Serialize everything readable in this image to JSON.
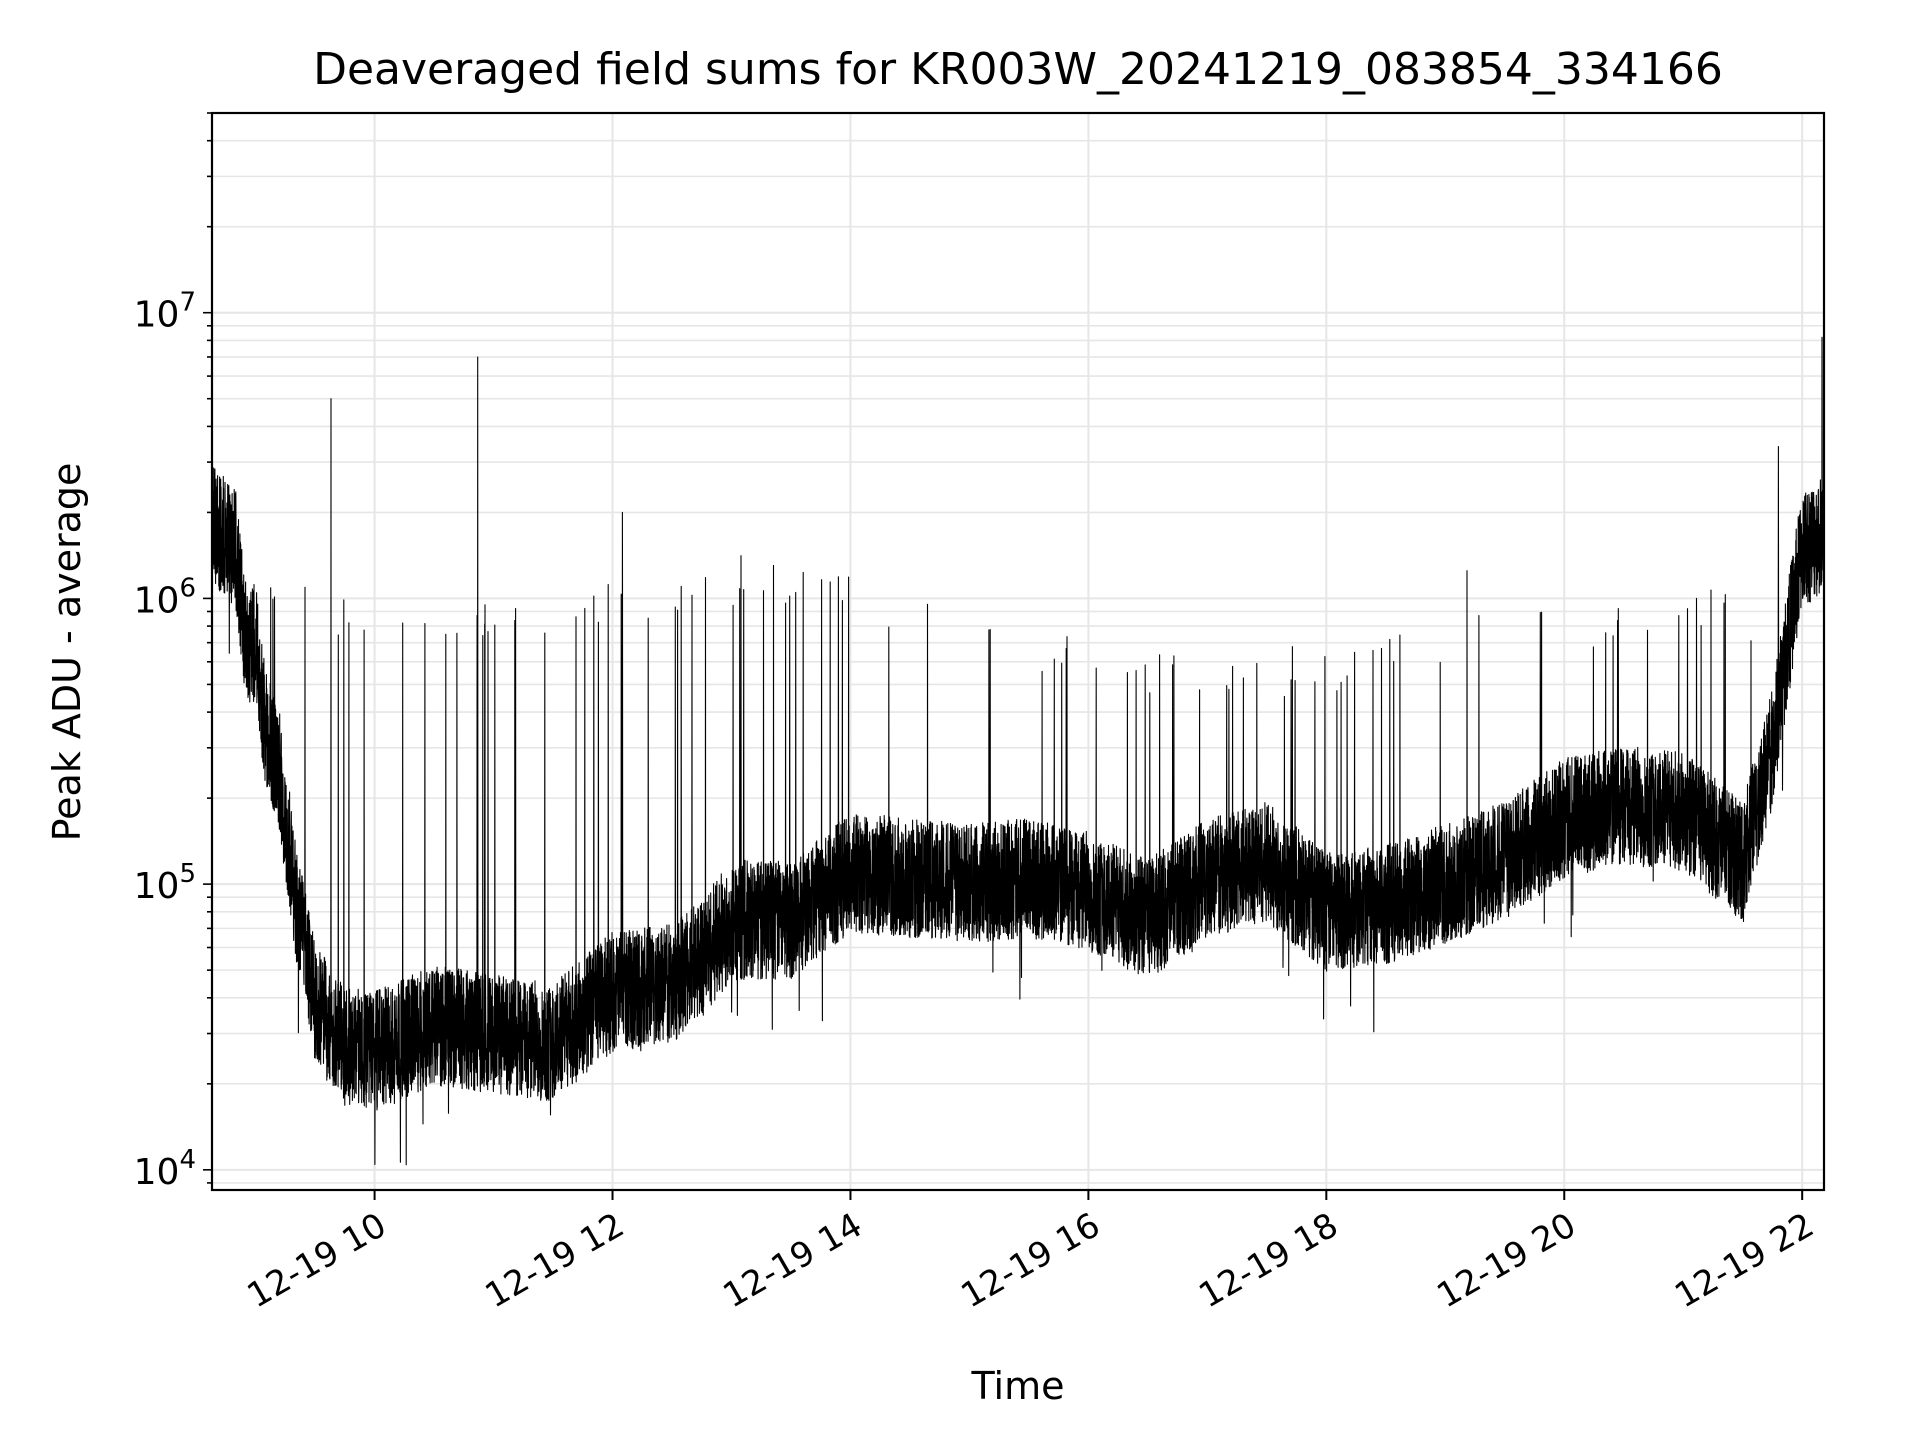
{
  "chart_data": {
    "type": "line",
    "title": "Deaveraged field sums for KR003W_20241219_083854_334166",
    "xlabel": "Time",
    "ylabel": "Peak ADU - average",
    "y_scale": "log",
    "xlim": [
      "2024-12-19 08:38",
      "2024-12-19 22:11"
    ],
    "ylim": [
      8500,
      50000000
    ],
    "x_ticks": [
      {
        "time": "2024-12-19 10:00",
        "label": "12-19 10"
      },
      {
        "time": "2024-12-19 12:00",
        "label": "12-19 12"
      },
      {
        "time": "2024-12-19 14:00",
        "label": "12-19 14"
      },
      {
        "time": "2024-12-19 16:00",
        "label": "12-19 16"
      },
      {
        "time": "2024-12-19 18:00",
        "label": "12-19 18"
      },
      {
        "time": "2024-12-19 20:00",
        "label": "12-19 20"
      },
      {
        "time": "2024-12-19 22:00",
        "label": "12-19 22"
      }
    ],
    "y_ticks": [
      {
        "value": 10000,
        "base": "10",
        "exp": "4"
      },
      {
        "value": 100000,
        "base": "10",
        "exp": "5"
      },
      {
        "value": 1000000,
        "base": "10",
        "exp": "6"
      },
      {
        "value": 10000000,
        "base": "10",
        "exp": "7"
      }
    ],
    "grid": true,
    "line_color": "#000000",
    "grid_color": "#e6e6e6",
    "baseline": {
      "x": [
        "2024-12-19 08:38",
        "2024-12-19 08:50",
        "2024-12-19 08:55",
        "2024-12-19 09:00",
        "2024-12-19 09:05",
        "2024-12-19 09:12",
        "2024-12-19 09:20",
        "2024-12-19 09:30",
        "2024-12-19 09:45",
        "2024-12-19 10:00",
        "2024-12-19 10:30",
        "2024-12-19 11:00",
        "2024-12-19 11:30",
        "2024-12-19 12:00",
        "2024-12-19 12:30",
        "2024-12-19 12:45",
        "2024-12-19 13:00",
        "2024-12-19 13:30",
        "2024-12-19 14:00",
        "2024-12-19 14:30",
        "2024-12-19 15:00",
        "2024-12-19 15:30",
        "2024-12-19 16:00",
        "2024-12-19 16:30",
        "2024-12-19 17:00",
        "2024-12-19 17:30",
        "2024-12-19 18:00",
        "2024-12-19 18:30",
        "2024-12-19 19:00",
        "2024-12-19 19:30",
        "2024-12-19 20:00",
        "2024-12-19 20:30",
        "2024-12-19 21:00",
        "2024-12-19 21:30",
        "2024-12-19 21:45",
        "2024-12-19 21:52",
        "2024-12-19 22:00",
        "2024-12-19 22:11"
      ],
      "y": [
        1800000,
        1500000,
        700000,
        700000,
        350000,
        250000,
        90000,
        38000,
        27000,
        26000,
        32000,
        30000,
        28000,
        42000,
        45000,
        55000,
        75000,
        75000,
        110000,
        105000,
        100000,
        105000,
        95000,
        75000,
        105000,
        120000,
        80000,
        85000,
        100000,
        120000,
        170000,
        190000,
        180000,
        120000,
        300000,
        650000,
        1500000,
        1700000
      ]
    },
    "peak_envelope": {
      "x": [
        "2024-12-19 09:00",
        "2024-12-19 09:30",
        "2024-12-19 10:00",
        "2024-12-19 10:30",
        "2024-12-19 11:00",
        "2024-12-19 11:30",
        "2024-12-19 12:00",
        "2024-12-19 12:30",
        "2024-12-19 13:00",
        "2024-12-19 13:30",
        "2024-12-19 14:00",
        "2024-12-19 14:30",
        "2024-12-19 15:00",
        "2024-12-19 15:30",
        "2024-12-19 16:00",
        "2024-12-19 16:30",
        "2024-12-19 17:00",
        "2024-12-19 17:30",
        "2024-12-19 18:00",
        "2024-12-19 18:30",
        "2024-12-19 19:00",
        "2024-12-19 19:30",
        "2024-12-19 20:00",
        "2024-12-19 20:30",
        "2024-12-19 21:00",
        "2024-12-19 21:30",
        "2024-12-19 21:45"
      ],
      "y": [
        1100000,
        1000000,
        900000,
        900000,
        900000,
        900000,
        1000000,
        1150000,
        1250000,
        1250000,
        1150000,
        1000000,
        800000,
        750000,
        700000,
        550000,
        620000,
        600000,
        600000,
        700000,
        800000,
        900000,
        900000,
        900000,
        950000,
        950000,
        800000
      ]
    },
    "spikes": [
      {
        "x": "2024-12-19 09:38",
        "y": 5000000
      },
      {
        "x": "2024-12-19 10:52",
        "y": 7000000
      },
      {
        "x": "2024-12-19 12:05",
        "y": 2000000
      },
      {
        "x": "2024-12-19 19:11",
        "y": 1250000
      },
      {
        "x": "2024-12-19 21:48",
        "y": 3400000
      },
      {
        "x": "2024-12-19 22:10",
        "y": 8200000
      }
    ]
  }
}
